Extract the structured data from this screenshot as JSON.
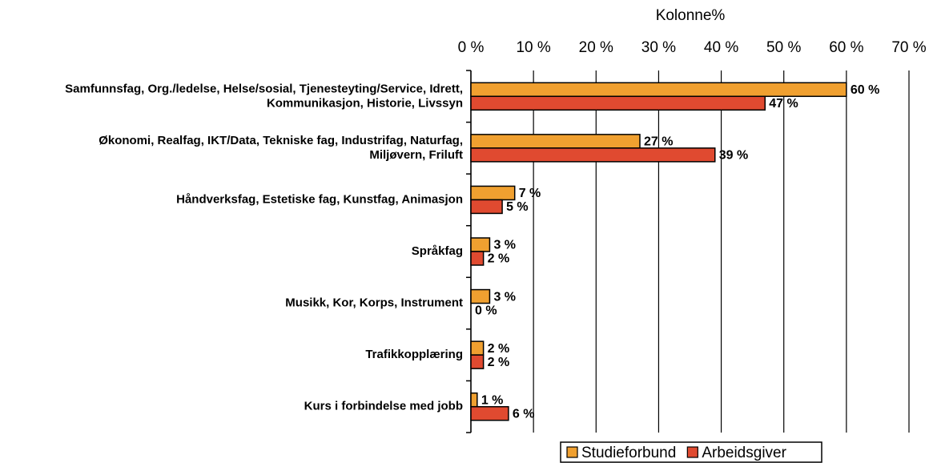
{
  "chart_data": {
    "type": "hbar",
    "title": "Kolonne%",
    "categories": [
      "Samfunnsfag, Org./ledelse, Helse/sosial, Tjenesteyting/Service, Idrett,\nKommunikasjon, Historie, Livssyn",
      "Økonomi, Realfag, IKT/Data, Tekniske fag, Industrifag, Naturfag,\nMiljøvern, Friluft",
      "Håndverksfag, Estetiske fag, Kunstfag, Animasjon",
      "Språkfag",
      "Musikk, Kor, Korps, Instrument",
      "Trafikkopplæring",
      "Kurs i forbindelse med jobb"
    ],
    "series": [
      {
        "name": "Studieforbund",
        "color": "#f0a030",
        "values": [
          60,
          27,
          7,
          3,
          3,
          2,
          1
        ],
        "value_labels": [
          "60 %",
          "27 %",
          "7 %",
          "3 %",
          "3 %",
          "2 %",
          "1 %"
        ]
      },
      {
        "name": "Arbeidsgiver",
        "color": "#e04a30",
        "values": [
          47,
          39,
          5,
          2,
          0,
          2,
          6
        ],
        "value_labels": [
          "47 %",
          "39 %",
          "5 %",
          "2 %",
          "0 %",
          "2 %",
          "6 %"
        ]
      }
    ],
    "xlim": [
      0,
      70
    ],
    "xticks": [
      {
        "value": 0,
        "label": "0 %"
      },
      {
        "value": 10,
        "label": "10 %"
      },
      {
        "value": 20,
        "label": "20 %"
      },
      {
        "value": 30,
        "label": "30 %"
      },
      {
        "value": 40,
        "label": "40 %"
      },
      {
        "value": 50,
        "label": "50 %"
      },
      {
        "value": 60,
        "label": "60 %"
      },
      {
        "value": 70,
        "label": "70 %"
      }
    ],
    "grid": true,
    "legend": "bottom-right"
  }
}
